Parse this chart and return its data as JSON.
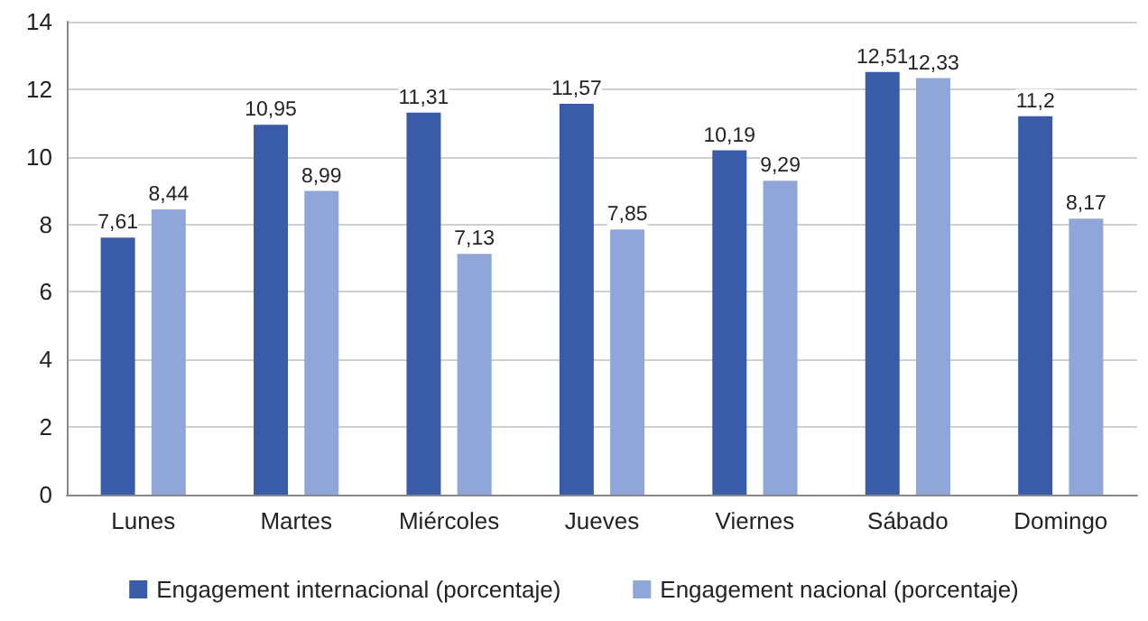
{
  "chart_data": {
    "type": "bar",
    "categories": [
      "Lunes",
      "Martes",
      "Miércoles",
      "Jueves",
      "Viernes",
      "Sábado",
      "Domingo"
    ],
    "series": [
      {
        "name": "Engagement internacional (porcentaje)",
        "color": "#3a5ba8",
        "values": [
          7.61,
          10.95,
          11.31,
          11.57,
          10.19,
          12.51,
          11.2
        ]
      },
      {
        "name": "Engagement nacional (porcentaje)",
        "color": "#90a6d8",
        "values": [
          8.44,
          8.99,
          7.13,
          7.85,
          9.29,
          12.33,
          8.17
        ]
      }
    ],
    "value_labels": [
      [
        "7,61",
        "10,95",
        "11,31",
        "11,57",
        "10,19",
        "12,51",
        "11,2"
      ],
      [
        "8,44",
        "8,99",
        "7,13",
        "7,85",
        "9,29",
        "12,33",
        "8,17"
      ]
    ],
    "ylim": [
      0,
      14
    ],
    "yticks": [
      0,
      2,
      4,
      6,
      8,
      10,
      12,
      14
    ],
    "grid": "y",
    "legend": "bottom"
  }
}
